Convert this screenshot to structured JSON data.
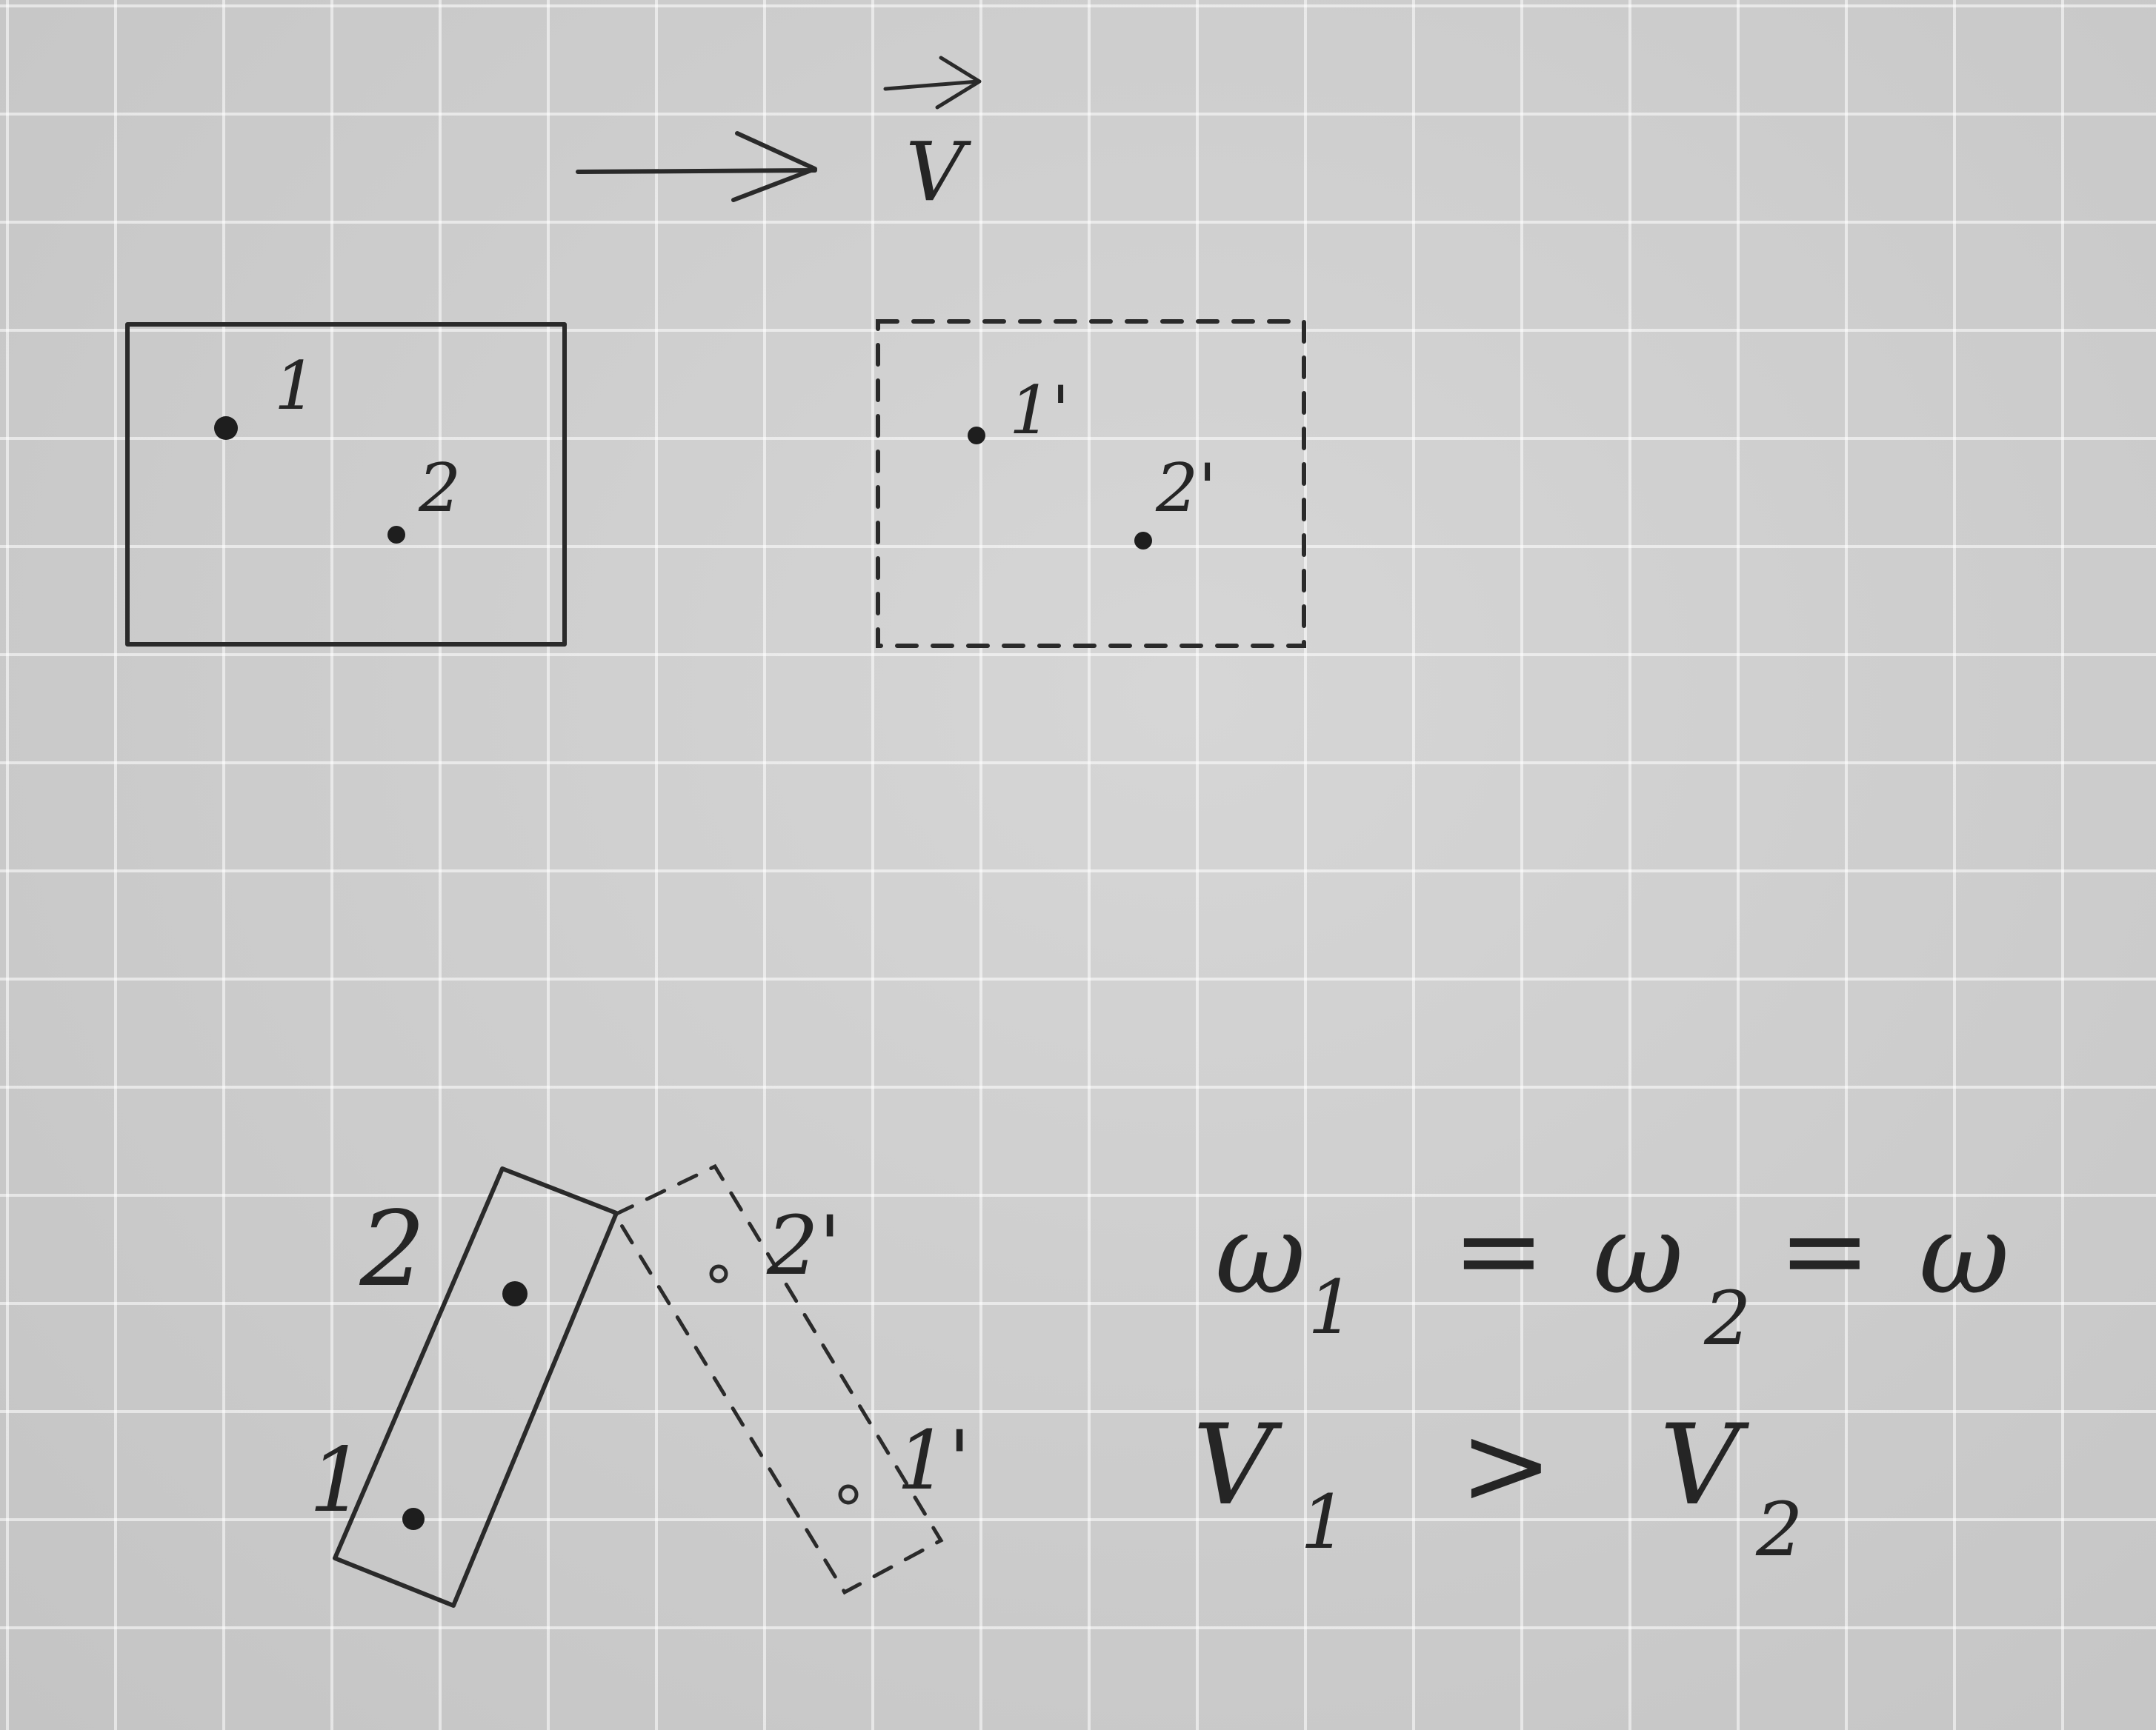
{
  "top": {
    "velocity_label": "V",
    "body1": {
      "point1": "1",
      "point2": "2"
    },
    "body2": {
      "point1": "1'",
      "point2": "2'"
    }
  },
  "bottom": {
    "body1": {
      "point1": "1",
      "point2": "2"
    },
    "body2": {
      "point1": "1'",
      "point2": "2'"
    }
  },
  "equations": {
    "omega_line": {
      "w1": "ω",
      "w1_sub": "1",
      "eq1": "=",
      "w2": "ω",
      "w2_sub": "2",
      "eq2": "=",
      "w": "ω"
    },
    "velocity_line": {
      "v1": "V",
      "v1_sub": "1",
      "gt": ">",
      "v2": "V",
      "v2_sub": "2"
    }
  }
}
